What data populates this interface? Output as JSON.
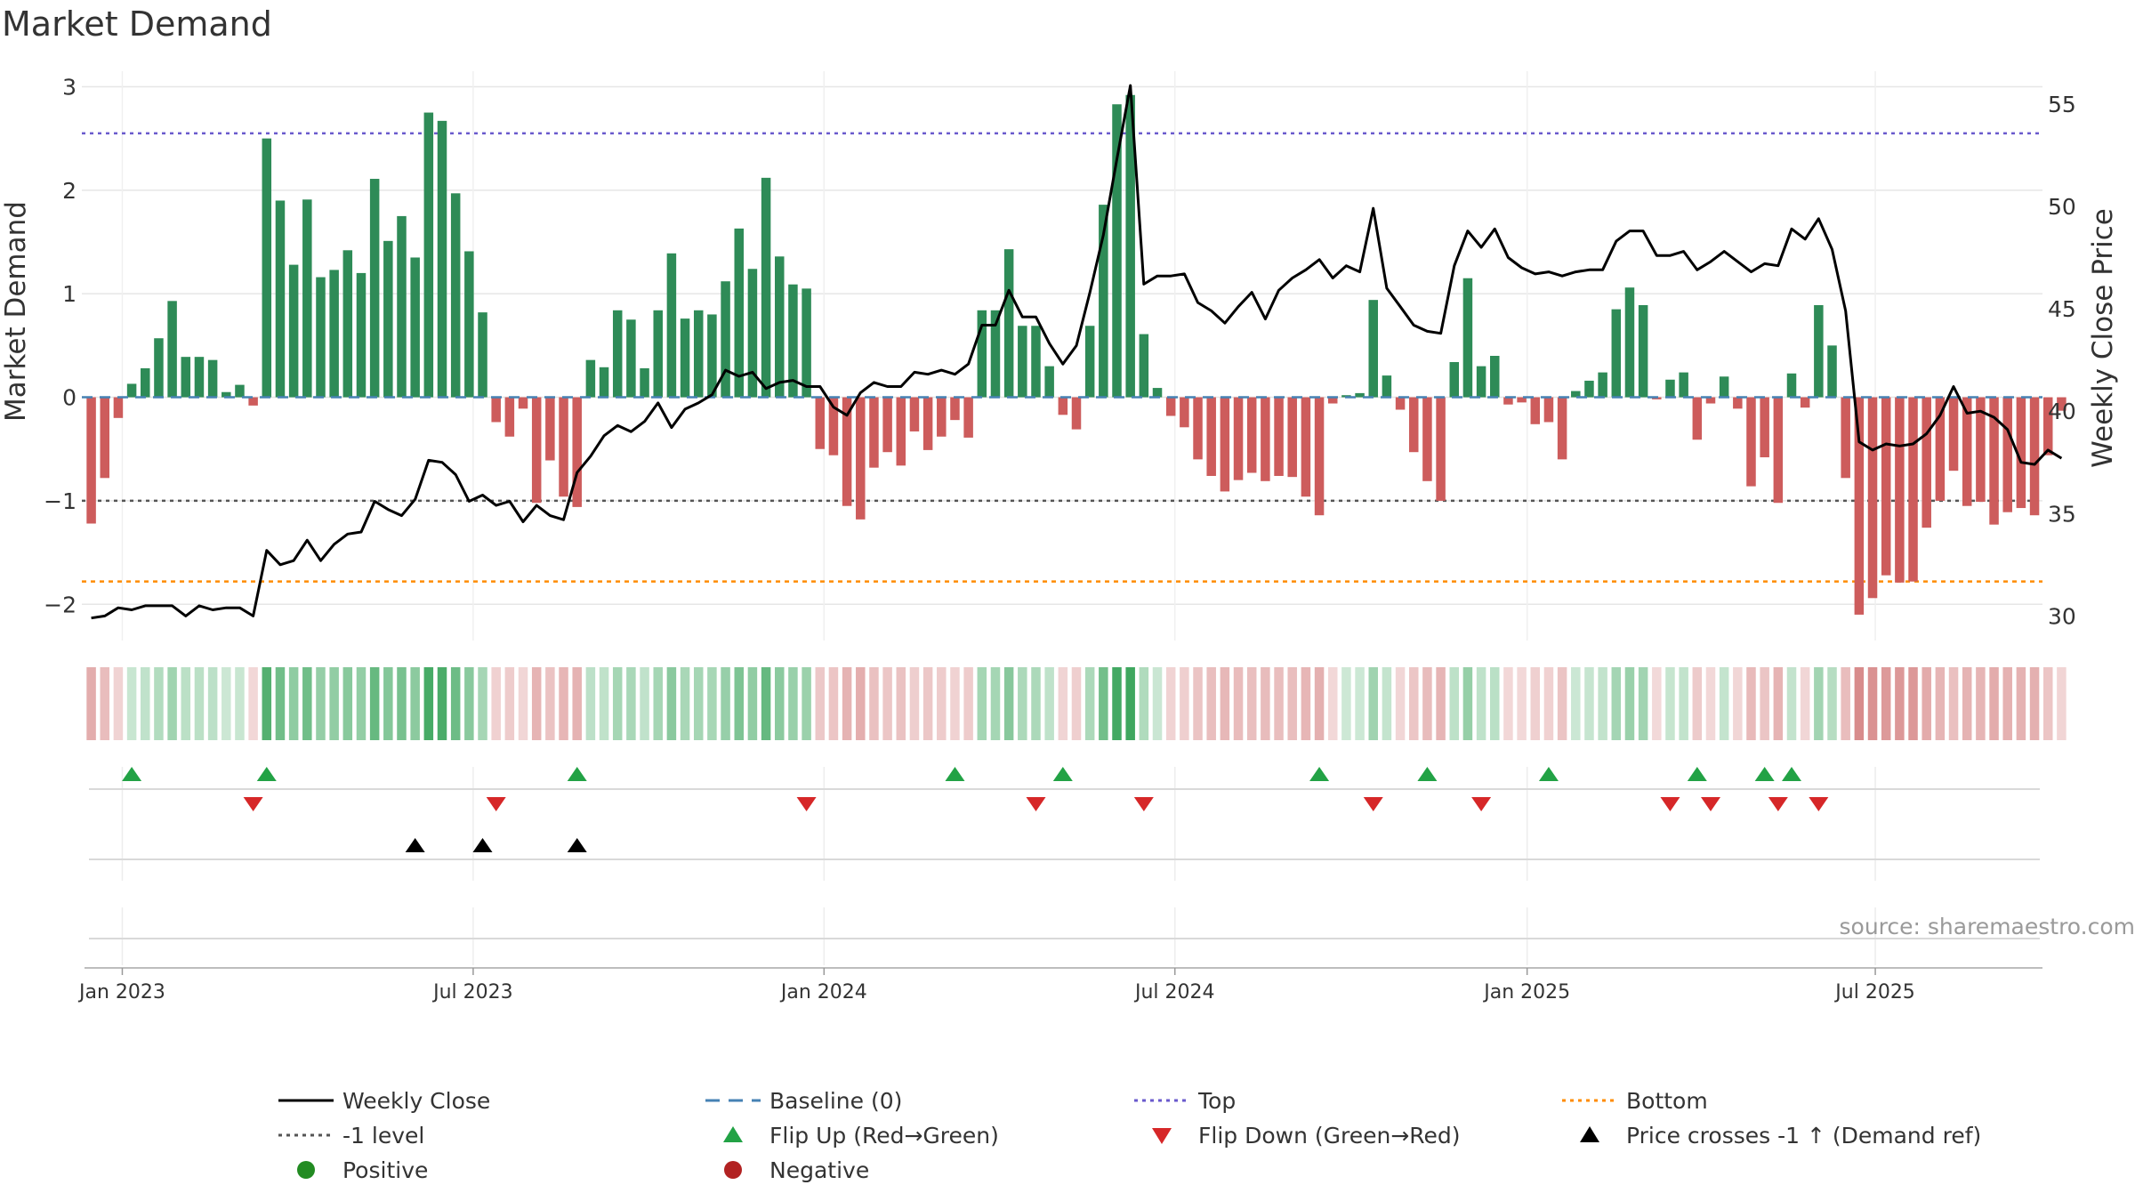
{
  "colors": {
    "positive_bar": "#2e8b57",
    "negative_bar": "#cd5c5c",
    "close_line": "#000000",
    "baseline": "#4682b4",
    "top_line": "#6a5acd",
    "bottom_line": "#ff8c00",
    "minus1_line": "#555555",
    "flip_up": "#22a245",
    "flip_down": "#d62728",
    "cross_marker": "#000000",
    "positive_dot": "#228b22",
    "negative_dot": "#b22222",
    "grid": "#e6e6e6"
  },
  "chart_data": {
    "type": "bar",
    "title": "Market Demand",
    "ylabel": "Market Demand",
    "y2label": "Weekly Close Price",
    "ylim": [
      -2.35,
      3.15
    ],
    "y2lim": [
      28.8,
      56.6
    ],
    "yticks": [
      "3",
      "2",
      "1",
      "0",
      "−1",
      "−2"
    ],
    "y2ticks": [
      "55",
      "50",
      "45",
      "40",
      "35",
      "30"
    ],
    "xticks": [
      {
        "label": "Jan 2023",
        "week": 2.3
      },
      {
        "label": "Jul 2023",
        "week": 28.3
      },
      {
        "label": "Jan 2024",
        "week": 54.3
      },
      {
        "label": "Jul 2024",
        "week": 80.3
      },
      {
        "label": "Jan 2025",
        "week": 106.4
      },
      {
        "label": "Jul 2025",
        "week": 132.2
      }
    ],
    "source": "source: sharemaestro.com",
    "reference_lines": {
      "top": 2.55,
      "minus1": -1.0,
      "bottom": -1.78,
      "baseline": 0
    },
    "demand": [
      -1.22,
      -0.78,
      -0.2,
      0.13,
      0.28,
      0.57,
      0.93,
      0.39,
      0.39,
      0.36,
      0.05,
      0.12,
      -0.08,
      2.5,
      1.9,
      1.28,
      1.91,
      1.16,
      1.23,
      1.42,
      1.2,
      2.11,
      1.51,
      1.75,
      1.35,
      2.75,
      2.67,
      1.97,
      1.41,
      0.82,
      -0.24,
      -0.38,
      -0.11,
      -1.02,
      -0.61,
      -0.96,
      -1.06,
      0.36,
      0.29,
      0.84,
      0.75,
      0.28,
      0.84,
      1.39,
      0.76,
      0.84,
      0.8,
      1.12,
      1.63,
      1.24,
      2.12,
      1.36,
      1.09,
      1.05,
      -0.5,
      -0.56,
      -1.05,
      -1.18,
      -0.68,
      -0.53,
      -0.66,
      -0.33,
      -0.51,
      -0.38,
      -0.22,
      -0.39,
      0.84,
      0.84,
      1.43,
      0.69,
      0.69,
      0.3,
      -0.17,
      -0.31,
      0.69,
      1.86,
      2.83,
      2.92,
      0.61,
      0.09,
      -0.18,
      -0.29,
      -0.6,
      -0.76,
      -0.91,
      -0.8,
      -0.73,
      -0.81,
      -0.76,
      -0.77,
      -0.96,
      -1.14,
      -0.06,
      0.02,
      0.04,
      0.94,
      0.21,
      -0.12,
      -0.53,
      -0.81,
      -1.0,
      0.34,
      1.15,
      0.3,
      0.4,
      -0.07,
      -0.05,
      -0.26,
      -0.24,
      -0.6,
      0.06,
      0.16,
      0.24,
      0.85,
      1.06,
      0.89,
      -0.02,
      0.17,
      0.24,
      -0.41,
      -0.06,
      0.2,
      -0.11,
      -0.86,
      -0.58,
      -1.02,
      0.23,
      -0.1,
      0.89,
      0.5,
      -0.78,
      -2.1,
      -1.94,
      -1.72,
      -1.79,
      -1.78,
      -1.26,
      -1.0,
      -0.71,
      -1.05,
      -1.01,
      -1.23,
      -1.11,
      -1.07,
      -1.14,
      -0.56,
      -0.13
    ],
    "close": [
      29.9,
      30.0,
      30.4,
      30.3,
      30.5,
      30.5,
      30.5,
      30.0,
      30.5,
      30.3,
      30.4,
      30.4,
      30.0,
      33.2,
      32.5,
      32.7,
      33.7,
      32.7,
      33.5,
      34.0,
      34.1,
      35.6,
      35.2,
      34.9,
      35.7,
      37.6,
      37.5,
      36.9,
      35.6,
      35.9,
      35.4,
      35.6,
      34.6,
      35.4,
      34.9,
      34.7,
      37.0,
      37.8,
      38.8,
      39.3,
      39.0,
      39.5,
      40.4,
      39.2,
      40.1,
      40.4,
      40.8,
      42.0,
      41.7,
      41.9,
      41.1,
      41.4,
      41.5,
      41.2,
      41.2,
      40.2,
      39.8,
      40.9,
      41.4,
      41.2,
      41.2,
      41.9,
      41.8,
      42.0,
      41.8,
      42.3,
      44.2,
      44.2,
      45.9,
      44.6,
      44.6,
      43.3,
      42.3,
      43.2,
      45.8,
      48.6,
      52.3,
      55.9,
      46.2,
      46.6,
      46.6,
      46.7,
      45.3,
      44.9,
      44.3,
      45.1,
      45.8,
      44.5,
      45.9,
      46.5,
      46.9,
      47.4,
      46.5,
      47.1,
      46.8,
      49.9,
      46.0,
      45.1,
      44.2,
      43.9,
      43.8,
      47.1,
      48.8,
      48.0,
      48.9,
      47.5,
      47.0,
      46.7,
      46.8,
      46.6,
      46.8,
      46.9,
      46.9,
      48.3,
      48.8,
      48.8,
      47.6,
      47.6,
      47.8,
      46.9,
      47.3,
      47.8,
      47.3,
      46.8,
      47.2,
      47.1,
      48.9,
      48.4,
      49.4,
      47.9,
      44.9,
      38.5,
      38.1,
      38.4,
      38.3,
      38.4,
      38.9,
      39.8,
      41.2,
      39.9,
      40.0,
      39.7,
      39.1,
      37.5,
      37.4,
      38.1,
      37.7
    ],
    "flip_up_weeks": [
      3,
      13,
      36,
      64,
      72,
      91,
      99,
      108,
      119,
      124,
      126
    ],
    "flip_down_weeks": [
      12,
      30,
      53,
      70,
      78,
      95,
      103,
      117,
      120,
      125,
      128
    ],
    "cross_weeks": [
      24,
      29,
      36
    ]
  },
  "legend": [
    {
      "label": "Weekly Close",
      "symbol": "solid-line-icon",
      "color": "#000000"
    },
    {
      "label": "Baseline (0)",
      "symbol": "dashed-line-icon",
      "color": "#4682b4"
    },
    {
      "label": "Top",
      "symbol": "dotted-line-icon",
      "color": "#6a5acd"
    },
    {
      "label": "Bottom",
      "symbol": "dotted-line-icon",
      "color": "#ff8c00"
    },
    {
      "label": "-1 level",
      "symbol": "dotted-line-icon",
      "color": "#555555"
    },
    {
      "label": "Flip Up (Red→Green)",
      "symbol": "triangle-up-icon",
      "color": "#22a245"
    },
    {
      "label": "Flip Down (Green→Red)",
      "symbol": "triangle-down-icon",
      "color": "#d62728"
    },
    {
      "label": "Price crosses -1 ↑ (Demand ref)",
      "symbol": "triangle-up-icon",
      "color": "#000000"
    },
    {
      "label": "Positive",
      "symbol": "circle-icon",
      "color": "#228b22"
    },
    {
      "label": "Negative",
      "symbol": "circle-icon",
      "color": "#b22222"
    }
  ]
}
